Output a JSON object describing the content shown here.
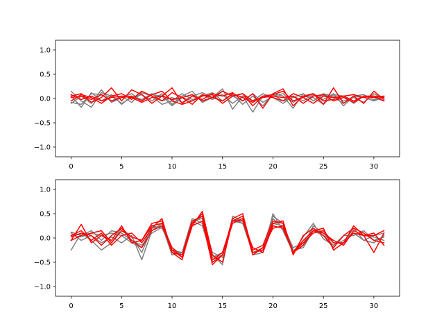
{
  "colors": {
    "gray": "#7f7f7f",
    "red": "#ff0000",
    "axis": "#000000"
  },
  "chart_data": [
    {
      "type": "line",
      "title": "",
      "xlabel": "",
      "ylabel": "",
      "xlim": [
        -1.55,
        32.55
      ],
      "ylim": [
        -1.2,
        1.2
      ],
      "xticks": [
        0,
        5,
        10,
        15,
        20,
        25,
        30
      ],
      "yticks": [
        -1.0,
        -0.5,
        0.0,
        0.5,
        1.0
      ],
      "ytick_labels": [
        "−1.0",
        "−0.5",
        "0.0",
        "0.5",
        "1.0"
      ],
      "grid": false,
      "series": [
        {
          "color": "gray",
          "values": [
            0.15,
            -0.05,
            -0.18,
            0.12,
            0.05,
            -0.1,
            0.02,
            0.08,
            -0.05,
            0.1,
            -0.12,
            0.05,
            0.15,
            -0.08,
            0.02,
            0.2,
            -0.22,
            0.05,
            -0.05,
            0.1,
            0.02,
            -0.1,
            0.05,
            -0.05,
            0.08,
            -0.02,
            0.1,
            -0.15,
            0.05,
            0.02,
            -0.05,
            0.03
          ]
        },
        {
          "color": "gray",
          "values": [
            -0.08,
            -0.12,
            0.1,
            0.08,
            -0.05,
            0.05,
            -0.08,
            0.12,
            0.05,
            -0.12,
            -0.05,
            0.1,
            -0.02,
            0.05,
            0.12,
            -0.05,
            0.08,
            -0.12,
            0.05,
            -0.15,
            0.1,
            0.05,
            -0.2,
            0.1,
            -0.05,
            0.08,
            0.02,
            -0.1,
            0.05,
            0.08,
            -0.03,
            0.05
          ]
        },
        {
          "color": "gray",
          "values": [
            0.05,
            -0.18,
            0.12,
            -0.05,
            0.08,
            -0.12,
            0.05,
            -0.02,
            0.1,
            -0.05,
            0.02,
            -0.08,
            0.05,
            0.12,
            0.02,
            0.08,
            -0.1,
            0.05,
            -0.28,
            0.05,
            0.08,
            -0.05,
            0.02,
            0.1,
            -0.05,
            0.1,
            0.05,
            -0.05,
            0.02,
            -0.08,
            0.1,
            -0.02
          ]
        },
        {
          "color": "gray",
          "values": [
            -0.1,
            0.05,
            -0.1,
            0.18,
            -0.08,
            0.02,
            0.1,
            -0.05,
            0.08,
            0.05,
            -0.15,
            0.02,
            -0.05,
            0.08,
            -0.02,
            0.15,
            0.05,
            -0.05,
            0.1,
            -0.08,
            0.05,
            0.1,
            -0.08,
            0.05,
            0.02,
            -0.12,
            0.08,
            0.05,
            -0.1,
            0.05,
            0.02,
            -0.05
          ]
        },
        {
          "color": "red",
          "values": [
            0.05,
            0.1,
            -0.08,
            0.02,
            0.22,
            -0.05,
            0.18,
            0.08,
            -0.1,
            0.05,
            0.22,
            -0.1,
            0.05,
            -0.02,
            0.1,
            0.05,
            0.12,
            -0.05,
            0.1,
            -0.2,
            0.1,
            0.2,
            -0.15,
            0.05,
            0.1,
            -0.12,
            0.22,
            -0.1,
            0.05,
            -0.1,
            0.15,
            -0.02
          ]
        },
        {
          "color": "red",
          "values": [
            -0.05,
            0.08,
            0.02,
            -0.1,
            0.05,
            0.1,
            -0.02,
            0.15,
            0.05,
            -0.05,
            0.12,
            0.02,
            -0.12,
            0.08,
            0.02,
            0.15,
            0.05,
            0.1,
            -0.15,
            0.05,
            0.08,
            0.15,
            -0.05,
            0.02,
            0.1,
            -0.05,
            -0.02,
            0.05,
            0.08,
            0.02,
            0.05,
            -0.05
          ]
        },
        {
          "color": "red",
          "values": [
            0.08,
            -0.02,
            0.05,
            -0.05,
            0.02,
            0.05,
            0.02,
            -0.08,
            0.02,
            0.05,
            -0.02,
            0.02,
            0.08,
            -0.05,
            0.02,
            -0.05,
            0.1,
            0.02,
            -0.08,
            0.05,
            0.02,
            -0.05,
            0.1,
            0.02,
            -0.1,
            0.05,
            0.02,
            0.05,
            -0.05,
            0.05,
            0.02,
            0.05
          ]
        },
        {
          "color": "red",
          "values": [
            0.02,
            0.05,
            -0.02,
            0.08,
            -0.05,
            0.02,
            0.05,
            -0.05,
            0.08,
            0.15,
            -0.05,
            -0.12,
            -0.05,
            0.05,
            0.08,
            -0.1,
            0.05,
            0.1,
            -0.05,
            0.02,
            0.05,
            0.02,
            0.05,
            -0.1,
            0.05,
            0.08,
            -0.05,
            0.02,
            -0.08,
            0.05,
            0.05,
            0.02
          ]
        }
      ]
    },
    {
      "type": "line",
      "title": "",
      "xlabel": "",
      "ylabel": "",
      "xlim": [
        -1.55,
        32.55
      ],
      "ylim": [
        -1.2,
        1.2
      ],
      "xticks": [
        0,
        5,
        10,
        15,
        20,
        25,
        30
      ],
      "yticks": [
        -1.0,
        -0.5,
        0.0,
        0.5,
        1.0
      ],
      "ytick_labels": [
        "−1.0",
        "−0.5",
        "0.0",
        "0.5",
        "1.0"
      ],
      "grid": false,
      "series": [
        {
          "color": "gray",
          "values": [
            0.1,
            -0.05,
            0.05,
            -0.1,
            0.02,
            -0.1,
            0.05,
            -0.45,
            0.15,
            0.3,
            -0.2,
            -0.35,
            0.35,
            0.4,
            -0.3,
            -0.4,
            0.35,
            0.3,
            -0.2,
            -0.3,
            0.5,
            0.15,
            -0.3,
            0.02,
            0.3,
            -0.02,
            -0.15,
            0.05,
            0.05,
            0.15,
            -0.05,
            0.02
          ]
        },
        {
          "color": "gray",
          "values": [
            -0.25,
            0.1,
            -0.05,
            -0.25,
            -0.1,
            0.2,
            0.02,
            -0.3,
            0.2,
            0.25,
            -0.35,
            -0.3,
            0.4,
            0.3,
            -0.35,
            -0.55,
            0.45,
            0.35,
            -0.3,
            -0.2,
            0.45,
            0.3,
            -0.25,
            -0.2,
            0.15,
            0.05,
            -0.15,
            -0.05,
            0.1,
            -0.05,
            -0.1,
            0.05
          ]
        },
        {
          "color": "gray",
          "values": [
            0.05,
            0.02,
            0.1,
            0.05,
            0.1,
            0.05,
            -0.1,
            -0.2,
            0.25,
            0.2,
            -0.2,
            -0.35,
            0.3,
            0.45,
            -0.45,
            -0.35,
            0.4,
            0.3,
            -0.3,
            -0.25,
            0.3,
            0.25,
            -0.2,
            -0.1,
            0.2,
            0.05,
            -0.05,
            -0.15,
            0.15,
            0.05,
            0.02,
            -0.05
          ]
        },
        {
          "color": "gray",
          "values": [
            0.12,
            0.05,
            0.15,
            -0.05,
            0.15,
            0.1,
            -0.05,
            -0.15,
            0.1,
            0.22,
            -0.25,
            -0.3,
            0.35,
            0.25,
            -0.4,
            -0.3,
            0.35,
            0.4,
            -0.35,
            -0.3,
            0.4,
            0.2,
            -0.3,
            -0.15,
            0.25,
            0.1,
            -0.1,
            -0.1,
            0.2,
            -0.05,
            0.05,
            0.1
          ]
        },
        {
          "color": "red",
          "values": [
            -0.05,
            0.28,
            -0.1,
            0.05,
            -0.05,
            0.25,
            -0.1,
            -0.05,
            0.3,
            0.35,
            -0.25,
            -0.4,
            0.25,
            0.55,
            -0.35,
            -0.5,
            0.35,
            0.45,
            -0.25,
            -0.15,
            0.35,
            0.3,
            -0.3,
            -0.05,
            0.15,
            0.2,
            -0.25,
            -0.1,
            0.25,
            0.05,
            -0.3,
            0.1
          ]
        },
        {
          "color": "red",
          "values": [
            0.05,
            0.15,
            -0.05,
            0.1,
            -0.15,
            0.05,
            0.1,
            -0.1,
            0.2,
            0.4,
            -0.3,
            -0.35,
            0.35,
            0.45,
            -0.5,
            -0.35,
            0.4,
            0.5,
            -0.3,
            -0.25,
            0.3,
            0.35,
            -0.35,
            0.05,
            0.2,
            0.05,
            -0.2,
            0.05,
            0.2,
            0.1,
            -0.05,
            -0.1
          ]
        },
        {
          "color": "red",
          "values": [
            -0.05,
            0.05,
            0.1,
            0.15,
            -0.1,
            0.15,
            0.02,
            -0.05,
            0.25,
            0.3,
            -0.3,
            -0.45,
            0.3,
            0.5,
            -0.45,
            -0.3,
            0.35,
            0.35,
            -0.2,
            -0.3,
            0.25,
            0.2,
            -0.3,
            -0.1,
            0.1,
            0.15,
            -0.1,
            -0.1,
            0.1,
            0.05,
            0.1,
            -0.15
          ]
        },
        {
          "color": "red",
          "values": [
            0.02,
            0.1,
            0.05,
            -0.15,
            0.05,
            0.2,
            -0.05,
            -0.2,
            0.15,
            0.25,
            -0.2,
            -0.4,
            0.25,
            0.35,
            -0.55,
            -0.35,
            0.3,
            0.4,
            -0.35,
            -0.2,
            0.2,
            0.25,
            -0.3,
            -0.15,
            0.15,
            0.1,
            -0.05,
            -0.15,
            0.15,
            0.05,
            0.05,
            0.15
          ]
        }
      ]
    }
  ]
}
